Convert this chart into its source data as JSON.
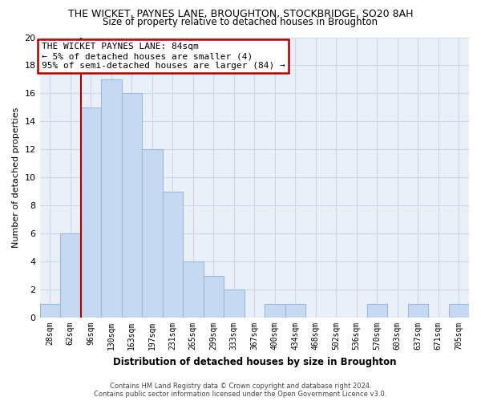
{
  "title": "THE WICKET, PAYNES LANE, BROUGHTON, STOCKBRIDGE, SO20 8AH",
  "subtitle": "Size of property relative to detached houses in Broughton",
  "xlabel": "Distribution of detached houses by size in Broughton",
  "ylabel": "Number of detached properties",
  "bar_labels": [
    "28sqm",
    "62sqm",
    "96sqm",
    "130sqm",
    "163sqm",
    "197sqm",
    "231sqm",
    "265sqm",
    "299sqm",
    "333sqm",
    "367sqm",
    "400sqm",
    "434sqm",
    "468sqm",
    "502sqm",
    "536sqm",
    "570sqm",
    "603sqm",
    "637sqm",
    "671sqm",
    "705sqm"
  ],
  "bar_values": [
    1,
    6,
    15,
    17,
    16,
    12,
    9,
    4,
    3,
    2,
    0,
    1,
    1,
    0,
    0,
    0,
    1,
    0,
    1,
    0,
    1
  ],
  "bar_color": "#c6d9f0",
  "bar_edge_color": "#9ab8e0",
  "grid_color": "#c8d8e8",
  "ylim": [
    0,
    20
  ],
  "yticks": [
    0,
    2,
    4,
    6,
    8,
    10,
    12,
    14,
    16,
    18,
    20
  ],
  "annotation_text_line1": "THE WICKET PAYNES LANE: 84sqm",
  "annotation_text_line2": "← 5% of detached houses are smaller (4)",
  "annotation_text_line3": "95% of semi-detached houses are larger (84) →",
  "annotation_box_color": "#ffffff",
  "annotation_box_edge_color": "#aa0000",
  "red_line_x": 1.5,
  "footer_line1": "Contains HM Land Registry data © Crown copyright and database right 2024.",
  "footer_line2": "Contains public sector information licensed under the Open Government Licence v3.0.",
  "background_color": "#ffffff",
  "plot_bg_color": "#eaf0f8"
}
